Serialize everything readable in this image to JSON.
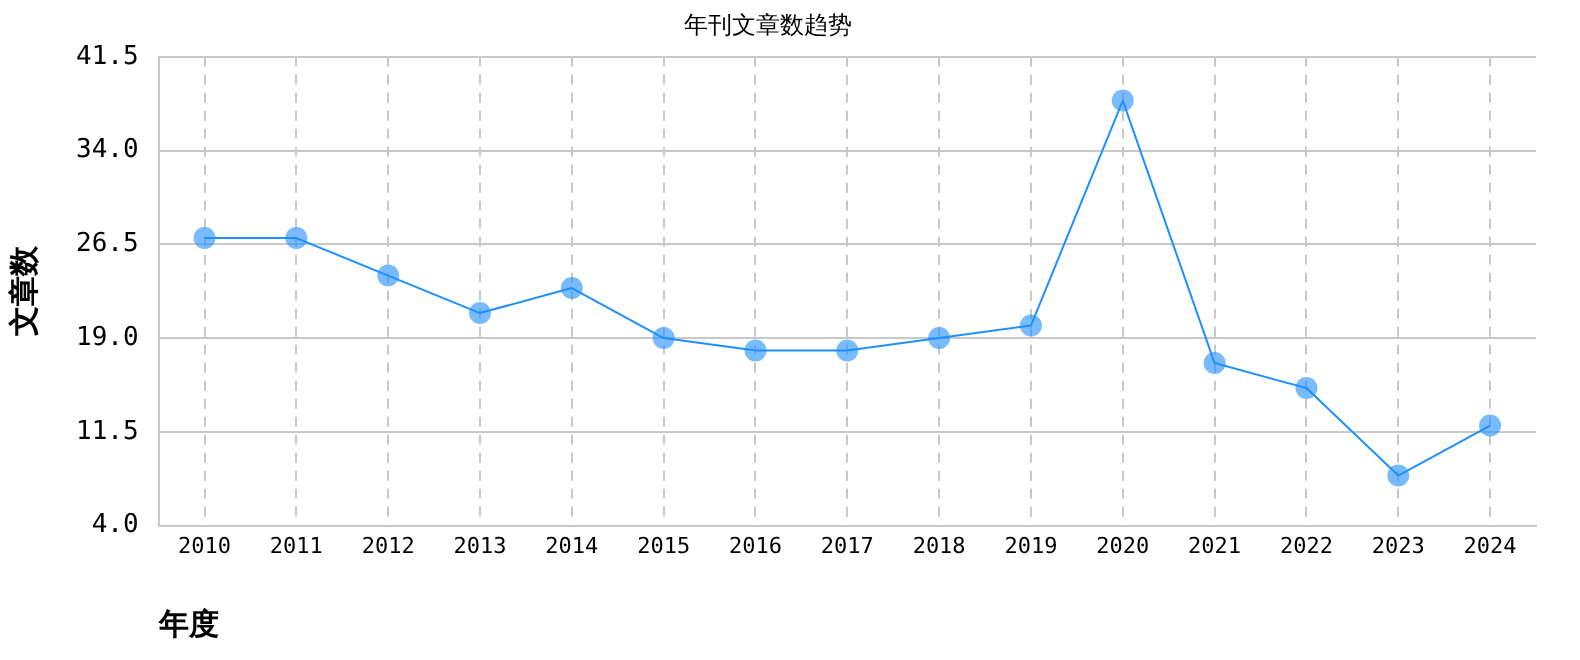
{
  "chart_data": {
    "type": "line",
    "title": "年刊文章数趋势",
    "xlabel": "年度",
    "ylabel": "文章数",
    "categories": [
      "2010",
      "2011",
      "2012",
      "2013",
      "2014",
      "2015",
      "2016",
      "2017",
      "2018",
      "2019",
      "2020",
      "2021",
      "2022",
      "2023",
      "2024"
    ],
    "series": [
      {
        "color": "#1e90ff",
        "values": [
          27,
          27,
          24,
          21,
          23,
          19,
          18,
          18,
          19,
          20,
          38,
          17,
          15,
          8,
          12
        ]
      }
    ],
    "ylim": [
      4.0,
      41.5
    ],
    "yticks": [
      {
        "value": 4,
        "label": "4.0"
      },
      {
        "value": 11.5,
        "label": "11.5"
      },
      {
        "value": 19,
        "label": "19.0"
      },
      {
        "value": 26.5,
        "label": "26.5"
      },
      {
        "value": 34,
        "label": "34.0"
      },
      {
        "value": 41.5,
        "label": "41.5"
      }
    ],
    "grid": true,
    "legend": false,
    "marker": "circle",
    "line_style": "solid"
  }
}
